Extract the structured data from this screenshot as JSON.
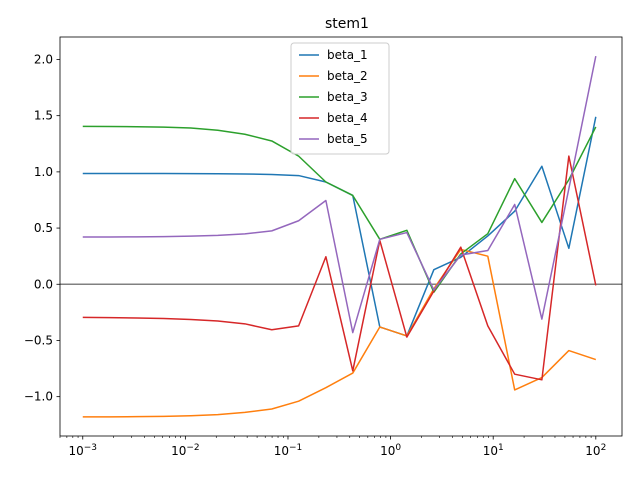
{
  "chart_data": {
    "type": "line",
    "title": "stem1",
    "xlabel": "",
    "ylabel": "",
    "xscale": "log",
    "xlim": [
      0.0006,
      180
    ],
    "ylim": [
      -1.35,
      2.2
    ],
    "grid": false,
    "legend_position": "top-center",
    "hline": {
      "y": 0,
      "color": "#808080"
    },
    "x_ticks": [
      {
        "value": 0.001,
        "base": "10",
        "exp": "−3"
      },
      {
        "value": 0.01,
        "base": "10",
        "exp": "−2"
      },
      {
        "value": 0.1,
        "base": "10",
        "exp": "−1"
      },
      {
        "value": 1,
        "base": "10",
        "exp": "0"
      },
      {
        "value": 10,
        "base": "10",
        "exp": "1"
      },
      {
        "value": 100,
        "base": "10",
        "exp": "2"
      }
    ],
    "y_ticks": [
      {
        "value": -1.0,
        "label": "−1.0"
      },
      {
        "value": -0.5,
        "label": "−0.5"
      },
      {
        "value": 0.0,
        "label": "0.0"
      },
      {
        "value": 0.5,
        "label": "0.5"
      },
      {
        "value": 1.0,
        "label": "1.0"
      },
      {
        "value": 1.5,
        "label": "1.5"
      },
      {
        "value": 2.0,
        "label": "2.0"
      }
    ],
    "x": [
      0.001,
      0.00183,
      0.00336,
      0.00616,
      0.0113,
      0.0207,
      0.038,
      0.0695,
      0.127,
      0.234,
      0.428,
      0.785,
      1.44,
      2.64,
      4.83,
      8.86,
      16.2,
      29.8,
      54.6,
      100
    ],
    "series": [
      {
        "name": "beta_1",
        "color": "#1f77b4",
        "values": [
          0.985,
          0.985,
          0.985,
          0.985,
          0.984,
          0.983,
          0.981,
          0.977,
          0.967,
          0.91,
          0.79,
          -0.38,
          -0.46,
          0.13,
          0.24,
          0.43,
          0.65,
          1.05,
          0.32,
          1.49
        ]
      },
      {
        "name": "beta_2",
        "color": "#ff7f0e",
        "values": [
          -1.18,
          -1.18,
          -1.178,
          -1.175,
          -1.17,
          -1.16,
          -1.14,
          -1.11,
          -1.04,
          -0.92,
          -0.79,
          -0.38,
          -0.46,
          -0.04,
          0.31,
          0.25,
          -0.94,
          -0.83,
          -0.59,
          -0.67
        ]
      },
      {
        "name": "beta_3",
        "color": "#2ca02c",
        "values": [
          1.405,
          1.404,
          1.402,
          1.398,
          1.39,
          1.37,
          1.335,
          1.275,
          1.14,
          0.91,
          0.79,
          0.4,
          0.48,
          -0.07,
          0.27,
          0.45,
          0.94,
          0.55,
          0.93,
          1.4
        ]
      },
      {
        "name": "beta_4",
        "color": "#d62728",
        "values": [
          -0.295,
          -0.297,
          -0.3,
          -0.305,
          -0.313,
          -0.327,
          -0.352,
          -0.405,
          -0.37,
          0.245,
          -0.77,
          0.39,
          -0.47,
          -0.06,
          0.33,
          -0.37,
          -0.8,
          -0.85,
          1.14,
          -0.01
        ]
      },
      {
        "name": "beta_5",
        "color": "#9467bd",
        "values": [
          0.42,
          0.421,
          0.422,
          0.424,
          0.428,
          0.435,
          0.448,
          0.475,
          0.565,
          0.745,
          -0.43,
          0.4,
          0.46,
          -0.05,
          0.26,
          0.3,
          0.71,
          -0.31,
          0.85,
          2.03
        ]
      }
    ]
  }
}
